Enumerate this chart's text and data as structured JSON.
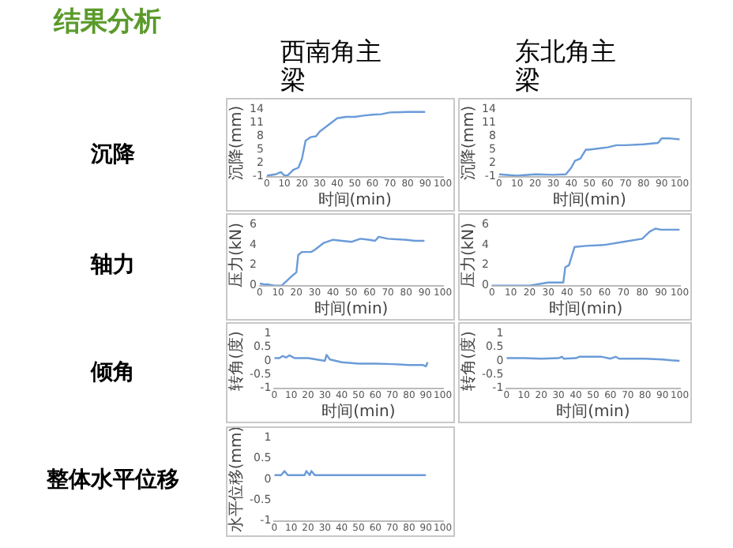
{
  "chart_data": [
    {
      "type": "line",
      "title": "结果分析",
      "subtitle": "西南角主梁",
      "annotations": [
        "沉降"
      ],
      "xlabel": "时间(min)",
      "ylabel": "沉降(mm)",
      "color": "#6a9bd8",
      "marker": "none",
      "grid": false,
      "x": [
        0,
        5,
        8,
        10,
        12,
        15,
        18,
        19,
        20,
        22,
        25,
        28,
        30,
        35,
        40,
        45,
        50,
        55,
        60,
        65,
        70,
        80,
        90
      ],
      "values": [
        -0.8,
        -0.5,
        0,
        -0.8,
        -0.7,
        0.5,
        1,
        2,
        3,
        7,
        7.8,
        8,
        9,
        10.5,
        12,
        12.3,
        12.3,
        12.6,
        12.8,
        12.9,
        13.3,
        13.4,
        13.4
      ],
      "xlim": [
        0,
        100
      ],
      "xticks": [
        0,
        10,
        20,
        30,
        40,
        50,
        60,
        70,
        80,
        90,
        100
      ],
      "ylim": [
        -1,
        14
      ],
      "yticks": [
        -1,
        2,
        5,
        8,
        11,
        14
      ]
    },
    {
      "type": "line",
      "subtitle": "东北角主梁",
      "xlabel": "时间(min)",
      "ylabel": "沉降(mm)",
      "color": "#6a9bd8",
      "marker": "none",
      "grid": false,
      "x": [
        0,
        10,
        20,
        30,
        37,
        40,
        42,
        45,
        48,
        50,
        60,
        65,
        70,
        80,
        88,
        90,
        95,
        100
      ],
      "values": [
        -0.5,
        -0.8,
        -0.5,
        -0.6,
        -0.5,
        1,
        2.5,
        3,
        5,
        5,
        5.5,
        6,
        6,
        6.2,
        6.5,
        7.5,
        7.5,
        7.3
      ],
      "xlim": [
        0,
        100
      ],
      "xticks": [
        0,
        10,
        20,
        30,
        40,
        50,
        60,
        70,
        80,
        90,
        100
      ],
      "ylim": [
        -1,
        14
      ],
      "yticks": [
        -1,
        2,
        5,
        8,
        11,
        14
      ]
    },
    {
      "type": "line",
      "annotations": [
        "轴力"
      ],
      "xlabel": "时间(min)",
      "ylabel": "压力(kN)",
      "color": "#6a9bd8",
      "marker": "none",
      "grid": false,
      "x": [
        0,
        3,
        5,
        8,
        12,
        15,
        18,
        20,
        21,
        23,
        28,
        30,
        35,
        40,
        45,
        50,
        55,
        60,
        63,
        65,
        70,
        80,
        85,
        90
      ],
      "values": [
        0.2,
        0.1,
        0.1,
        0,
        0,
        0.5,
        1,
        1.3,
        3,
        3.3,
        3.3,
        3.5,
        4.2,
        4.5,
        4.4,
        4.3,
        4.6,
        4.5,
        4.4,
        4.8,
        4.6,
        4.5,
        4.4,
        4.4
      ],
      "xlim": [
        0,
        100
      ],
      "xticks": [
        0,
        10,
        20,
        30,
        40,
        50,
        60,
        70,
        80,
        90,
        100
      ],
      "ylim": [
        0,
        6
      ],
      "yticks": [
        0,
        2,
        4,
        6
      ]
    },
    {
      "type": "line",
      "xlabel": "时间(min)",
      "ylabel": "压力(kN)",
      "color": "#6a9bd8",
      "marker": "none",
      "grid": false,
      "x": [
        0,
        20,
        30,
        38,
        39,
        41,
        44,
        50,
        60,
        70,
        80,
        84,
        87,
        90,
        100
      ],
      "values": [
        0,
        0,
        0.3,
        0.3,
        1.8,
        2,
        3.8,
        3.9,
        4,
        4.3,
        4.6,
        5.3,
        5.6,
        5.5,
        5.5
      ],
      "xlim": [
        0,
        100
      ],
      "xticks": [
        0,
        10,
        20,
        30,
        40,
        50,
        60,
        70,
        80,
        90,
        100
      ],
      "ylim": [
        0,
        6
      ],
      "yticks": [
        0,
        2,
        4,
        6
      ]
    },
    {
      "type": "line",
      "annotations": [
        "倾角"
      ],
      "xlabel": "时间(min)",
      "ylabel": "转角(度)",
      "color": "#6a9bd8",
      "marker": "none",
      "grid": false,
      "x": [
        0,
        3,
        5,
        7,
        9,
        12,
        20,
        25,
        30,
        31,
        33,
        40,
        50,
        60,
        70,
        80,
        88,
        90,
        91
      ],
      "values": [
        0.1,
        0.1,
        0.18,
        0.12,
        0.2,
        0.1,
        0.1,
        0.05,
        0,
        0.22,
        0.05,
        -0.05,
        -0.1,
        -0.1,
        -0.12,
        -0.15,
        -0.15,
        -0.2,
        -0.05
      ],
      "xlim": [
        0,
        100
      ],
      "xticks": [
        0,
        10,
        20,
        30,
        40,
        50,
        60,
        70,
        80,
        90,
        100
      ],
      "ylim": [
        -1,
        1
      ],
      "yticks": [
        -1,
        -0.5,
        0,
        0.5,
        1
      ]
    },
    {
      "type": "line",
      "xlabel": "时间(min)",
      "ylabel": "转角(度)",
      "color": "#6a9bd8",
      "marker": "none",
      "grid": false,
      "x": [
        0,
        10,
        20,
        30,
        32,
        33,
        40,
        42,
        55,
        60,
        63,
        65,
        80,
        90,
        95,
        100
      ],
      "values": [
        0.1,
        0.1,
        0.08,
        0.1,
        0.15,
        0.08,
        0.1,
        0.15,
        0.15,
        0.08,
        0.15,
        0.08,
        0.08,
        0.05,
        0.02,
        0
      ],
      "xlim": [
        0,
        100
      ],
      "xticks": [
        0,
        10,
        20,
        30,
        40,
        50,
        60,
        70,
        80,
        90,
        100
      ],
      "ylim": [
        -1,
        1
      ],
      "yticks": [
        -1,
        -0.5,
        0,
        0.5,
        1
      ]
    },
    {
      "type": "line",
      "annotations": [
        "整体水平位移"
      ],
      "ylabel": "水平位移(mm)",
      "color": "#6a9bd8",
      "marker": "none",
      "grid": false,
      "x": [
        0,
        4,
        6,
        8,
        18,
        19,
        21,
        22,
        24,
        90
      ],
      "values": [
        0.1,
        0.1,
        0.2,
        0.1,
        0.1,
        0.2,
        0.1,
        0.2,
        0.1,
        0.1
      ],
      "xlim": [
        0,
        100
      ],
      "xticks": [
        0,
        10,
        20,
        30,
        40,
        50,
        60,
        70,
        80,
        90,
        100
      ],
      "ylim": [
        -1,
        1
      ],
      "yticks": [
        -1,
        -0.5,
        0,
        0.5,
        1
      ]
    }
  ]
}
